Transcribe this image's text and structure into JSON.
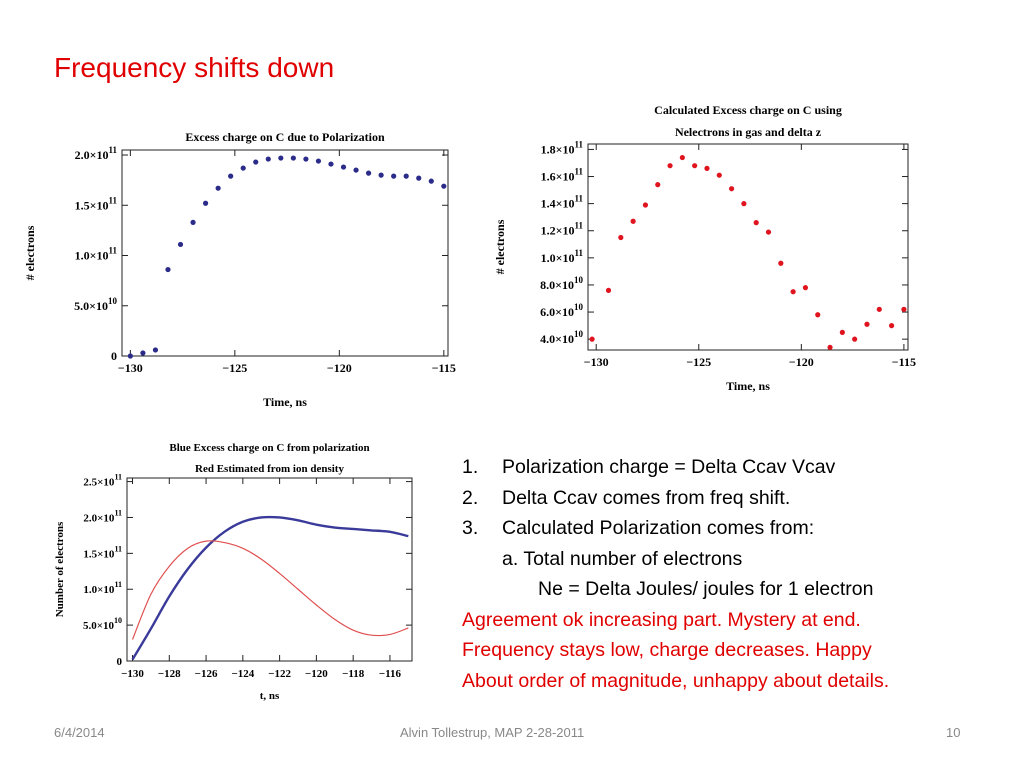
{
  "slide": {
    "title": "Frequency shifts down",
    "footer_date": "6/4/2014",
    "footer_center": "Alvin Tollestrup, MAP 2-28-2011",
    "footer_page": "10"
  },
  "bullets": {
    "items": [
      {
        "num": "1.",
        "text": "Polarization charge = Delta Ccav  Vcav"
      },
      {
        "num": "2.",
        "text": "Delta Ccav comes from freq shift."
      },
      {
        "num": "3.",
        "text": "Calculated Polarization comes from:"
      }
    ],
    "sub_a": "a.  Total number of electrons",
    "sub_ne": "Ne = Delta Joules/ joules for 1 electron",
    "red_lines": [
      "Agreement ok increasing part.  Mystery at end.",
      "Frequency stays low, charge decreases.  Happy",
      "About order of magnitude, unhappy about details."
    ]
  },
  "colors": {
    "title_red": "#e00000",
    "dot_blue": "#2b2b8a",
    "dot_red": "#e0141e",
    "curve_blue": "#3a3a9a",
    "curve_red": "#e05050"
  },
  "chart_data": [
    {
      "type": "scatter",
      "title": "Excess charge on C due to Polarization",
      "xlabel": "Time, ns",
      "ylabel": "# electrons",
      "xlim": [
        -130.4,
        -114.8
      ],
      "ylim": [
        0,
        205000000000.0
      ],
      "xticks": [
        -130,
        -125,
        -120,
        -115
      ],
      "xtick_labels": [
        "−130",
        "−125",
        "−120",
        "−115"
      ],
      "yticks": [
        {
          "v": 0,
          "m": "0",
          "e": ""
        },
        {
          "v": 50000000000.0,
          "m": "5.0",
          "e": "10"
        },
        {
          "v": 100000000000.0,
          "m": "1.0",
          "e": "11"
        },
        {
          "v": 150000000000.0,
          "m": "1.5",
          "e": "11"
        },
        {
          "v": 200000000000.0,
          "m": "2.0",
          "e": "11"
        }
      ],
      "series": [
        {
          "color": "#2b2b8a",
          "x": [
            -130,
            -129.4,
            -128.8,
            -128.2,
            -127.6,
            -127.0,
            -126.4,
            -125.8,
            -125.2,
            -124.6,
            -124.0,
            -123.4,
            -122.8,
            -122.2,
            -121.6,
            -121.0,
            -120.4,
            -119.8,
            -119.2,
            -118.6,
            -118.0,
            -117.4,
            -116.8,
            -116.2,
            -115.6,
            -115.0
          ],
          "y": [
            0.0,
            3000000000.0,
            6000000000.0,
            86000000000.0,
            111000000000.0,
            133000000000.0,
            152000000000.0,
            167000000000.0,
            179000000000.0,
            187000000000.0,
            193000000000.0,
            196000000000.0,
            197000000000.0,
            197000000000.0,
            196000000000.0,
            194000000000.0,
            191000000000.0,
            188000000000.0,
            185000000000.0,
            182000000000.0,
            180000000000.0,
            179000000000.0,
            179000000000.0,
            177000000000.0,
            174000000000.0,
            169000000000.0
          ]
        }
      ]
    },
    {
      "type": "scatter",
      "title": "Calculated Excess charge on C using",
      "subtitle": "Nelectrons in gas and delta z",
      "xlabel": "Time, ns",
      "ylabel": "# electrons",
      "xlim": [
        -130.4,
        -114.8
      ],
      "ylim": [
        32000000000.0,
        184000000000.0
      ],
      "xticks": [
        -130,
        -125,
        -120,
        -115
      ],
      "xtick_labels": [
        "−130",
        "−125",
        "−120",
        "−115"
      ],
      "yticks": [
        {
          "v": 40000000000.0,
          "m": "4.0",
          "e": "10"
        },
        {
          "v": 60000000000.0,
          "m": "6.0",
          "e": "10"
        },
        {
          "v": 80000000000.0,
          "m": "8.0",
          "e": "10"
        },
        {
          "v": 100000000000.0,
          "m": "1.0",
          "e": "11"
        },
        {
          "v": 120000000000.0,
          "m": "1.2",
          "e": "11"
        },
        {
          "v": 140000000000.0,
          "m": "1.4",
          "e": "11"
        },
        {
          "v": 160000000000.0,
          "m": "1.6",
          "e": "11"
        },
        {
          "v": 180000000000.0,
          "m": "1.8",
          "e": "11"
        }
      ],
      "series": [
        {
          "color": "#e0141e",
          "x": [
            -130.2,
            -129.4,
            -128.8,
            -128.2,
            -127.6,
            -127.0,
            -126.4,
            -125.8,
            -125.2,
            -124.6,
            -124.0,
            -123.4,
            -122.8,
            -122.2,
            -121.6,
            -121.0,
            -120.4,
            -119.8,
            -119.2,
            -118.6,
            -118.0,
            -117.4,
            -116.8,
            -116.2,
            -115.6,
            -115.0
          ],
          "y": [
            40000000000.0,
            76000000000.0,
            115000000000.0,
            127000000000.0,
            139000000000.0,
            154000000000.0,
            168000000000.0,
            174000000000.0,
            168000000000.0,
            166000000000.0,
            161000000000.0,
            151000000000.0,
            140000000000.0,
            126000000000.0,
            119000000000.0,
            96000000000.0,
            75000000000.0,
            78000000000.0,
            58000000000.0,
            34000000000.0,
            45000000000.0,
            40000000000.0,
            51000000000.0,
            62000000000.0,
            50000000000.0,
            62000000000.0
          ]
        }
      ]
    },
    {
      "type": "line",
      "title": "Blue  Excess charge on C from polarization",
      "subtitle": "Red  Estimated from ion density",
      "xlabel": "t, ns",
      "ylabel": "Number of electrons",
      "xlim": [
        -130.3,
        -114.8
      ],
      "ylim": [
        0,
        255000000000.0
      ],
      "xticks": [
        -130,
        -128,
        -126,
        -124,
        -122,
        -120,
        -118,
        -116
      ],
      "xtick_labels": [
        "−130",
        "−128",
        "−126",
        "−124",
        "−122",
        "−120",
        "−118",
        "−116"
      ],
      "yticks": [
        {
          "v": 0,
          "m": "0",
          "e": ""
        },
        {
          "v": 50000000000.0,
          "m": "5.0",
          "e": "10"
        },
        {
          "v": 100000000000.0,
          "m": "1.0",
          "e": "11"
        },
        {
          "v": 150000000000.0,
          "m": "1.5",
          "e": "11"
        },
        {
          "v": 200000000000.0,
          "m": "2.0",
          "e": "11"
        },
        {
          "v": 250000000000.0,
          "m": "2.5",
          "e": "11"
        }
      ],
      "series": [
        {
          "color": "#3a3a9a",
          "width": 2.4,
          "x": [
            -130,
            -129,
            -128,
            -127,
            -126,
            -125,
            -124,
            -123,
            -122,
            -121,
            -120,
            -119,
            -118,
            -117,
            -116,
            -115
          ],
          "y": [
            2000000000.0,
            45000000000.0,
            90000000000.0,
            128000000000.0,
            158000000000.0,
            180000000000.0,
            194000000000.0,
            200000000000.0,
            200000000000.0,
            196000000000.0,
            190000000000.0,
            186000000000.0,
            184000000000.0,
            182000000000.0,
            180000000000.0,
            174000000000.0
          ]
        },
        {
          "color": "#e05050",
          "width": 1.2,
          "x": [
            -130,
            -129,
            -128,
            -127,
            -126,
            -125,
            -124,
            -123,
            -122,
            -121,
            -120,
            -119,
            -118,
            -117,
            -116,
            -115
          ],
          "y": [
            30000000000.0,
            93000000000.0,
            132000000000.0,
            157000000000.0,
            167000000000.0,
            165000000000.0,
            157000000000.0,
            142000000000.0,
            122000000000.0,
            100000000000.0,
            78000000000.0,
            58000000000.0,
            43000000000.0,
            36000000000.0,
            37000000000.0,
            46000000000.0
          ]
        }
      ]
    }
  ]
}
